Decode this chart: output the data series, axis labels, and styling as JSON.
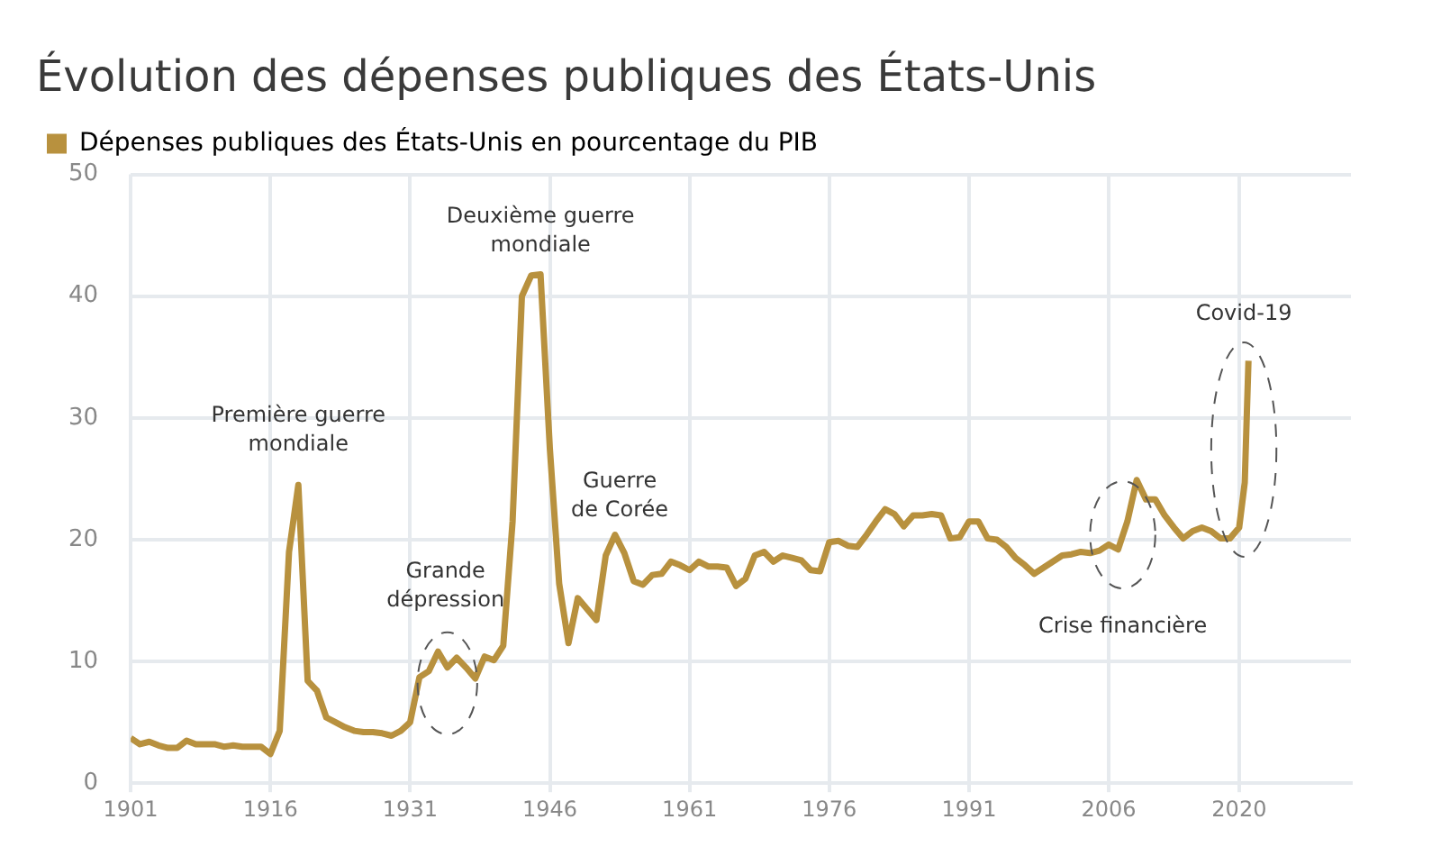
{
  "chart_data": {
    "type": "line",
    "title": "Évolution des dépenses publiques des États-Unis",
    "x": [
      1901,
      1902,
      1903,
      1904,
      1905,
      1906,
      1907,
      1908,
      1909,
      1910,
      1911,
      1912,
      1913,
      1914,
      1915,
      1916,
      1917,
      1918,
      1919,
      1920,
      1921,
      1922,
      1923,
      1924,
      1925,
      1926,
      1927,
      1928,
      1929,
      1930,
      1931,
      1932,
      1933,
      1934,
      1935,
      1936,
      1937,
      1938,
      1939,
      1940,
      1941,
      1942,
      1943,
      1944,
      1945,
      1946,
      1947,
      1948,
      1949,
      1950,
      1951,
      1952,
      1953,
      1954,
      1955,
      1956,
      1957,
      1958,
      1959,
      1960,
      1961,
      1962,
      1963,
      1964,
      1965,
      1966,
      1967,
      1968,
      1969,
      1970,
      1971,
      1972,
      1973,
      1974,
      1975,
      1976,
      1977,
      1978,
      1979,
      1980,
      1981,
      1982,
      1983,
      1984,
      1985,
      1986,
      1987,
      1988,
      1989,
      1990,
      1991,
      1992,
      1993,
      1994,
      1995,
      1996,
      1997,
      1998,
      1999,
      2000,
      2001,
      2002,
      2003,
      2004,
      2005,
      2006,
      2007,
      2008,
      2009,
      2010,
      2011,
      2012,
      2013,
      2014,
      2015,
      2016,
      2017,
      2018,
      2019,
      2020,
      2020.6,
      2021
    ],
    "series": [
      {
        "name": "Dépenses publiques des États-Unis en pourcentage du PIB",
        "color": "#b8913e",
        "values": [
          3.7,
          3.2,
          3.4,
          3.1,
          2.9,
          2.9,
          3.5,
          3.2,
          3.2,
          3.2,
          3.0,
          3.1,
          3.0,
          3.0,
          3.0,
          2.4,
          4.3,
          19,
          24.5,
          8.4,
          7.6,
          5.4,
          5.0,
          4.6,
          4.3,
          4.2,
          4.2,
          4.1,
          3.9,
          4.3,
          5.0,
          8.7,
          9.2,
          10.8,
          9.5,
          10.3,
          9.5,
          8.6,
          10.4,
          10.1,
          11.3,
          21.5,
          40,
          41.7,
          41.8,
          27.5,
          16.4,
          11.5,
          15.2,
          14.3,
          13.4,
          18.7,
          20.4,
          18.9,
          16.6,
          16.3,
          17.1,
          17.2,
          18.2,
          17.9,
          17.5,
          18.2,
          17.8,
          17.8,
          17.7,
          16.2,
          16.8,
          18.7,
          19.0,
          18.2,
          18.7,
          18.5,
          18.3,
          17.5,
          17.4,
          19.8,
          19.9,
          19.5,
          19.4,
          20.4,
          21.5,
          22.5,
          22.1,
          21.1,
          22.0,
          22.0,
          22.1,
          22.0,
          20.1,
          20.2,
          21.5,
          21.5,
          20.1,
          20.0,
          19.4,
          18.5,
          17.9,
          17.2,
          17.7,
          18.2,
          18.7,
          18.8,
          19.0,
          18.9,
          19.1,
          19.6,
          19.2,
          21.5,
          24.9,
          23.3,
          23.3,
          22.0,
          21.0,
          20.1,
          20.7,
          21.0,
          20.7,
          20.1,
          20.1,
          21.0,
          24.7,
          34.7
        ]
      }
    ],
    "xlim": [
      1901,
      2032
    ],
    "xticks": [
      1901,
      1916,
      1931,
      1946,
      1961,
      1976,
      1991,
      2006,
      2020
    ],
    "ylim": [
      0,
      50
    ],
    "yticks": [
      0,
      10,
      20,
      30,
      40,
      50
    ],
    "grid": true,
    "legend": "top left",
    "marker": "none",
    "line_style": "solid",
    "annotations": [
      "Première guerre\nmondiale",
      "Grande\ndépression",
      "Deuxième guerre\nmondiale",
      "Guerre\nde Corée",
      "Crise financière",
      "Covid-19"
    ]
  }
}
